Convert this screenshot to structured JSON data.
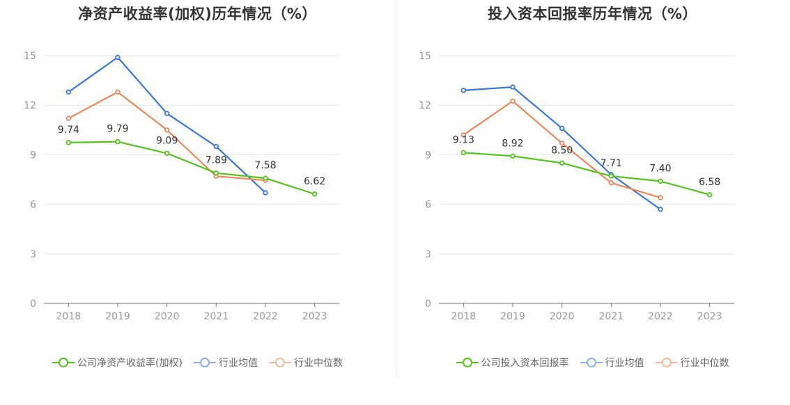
{
  "chart_data": [
    {
      "type": "line",
      "title": "净资产收益率(加权)历年情况（%）",
      "categories": [
        "2018",
        "2019",
        "2020",
        "2021",
        "2022",
        "2023"
      ],
      "ylim": [
        0,
        15
      ],
      "yticks": [
        "0",
        "3",
        "6",
        "9",
        "12",
        "15"
      ],
      "grid": true,
      "legend_position": "bottom",
      "series": [
        {
          "name": "公司净资产收益率(加权)",
          "color": "#52c41a",
          "values": [
            9.74,
            9.79,
            9.09,
            7.89,
            7.58,
            6.62
          ],
          "labels": [
            "9.74",
            "9.79",
            "9.09",
            "7.89",
            "7.58",
            "6.62"
          ]
        },
        {
          "name": "行业均值",
          "color": "#3a75e0",
          "values": [
            12.8,
            14.9,
            11.5,
            9.5,
            6.7,
            null
          ]
        },
        {
          "name": "行业中位数",
          "color": "#f0875a",
          "values": [
            11.2,
            12.8,
            10.5,
            7.7,
            7.45,
            null
          ]
        }
      ]
    },
    {
      "type": "line",
      "title": "投入资本回报率历年情况（%）",
      "categories": [
        "2018",
        "2019",
        "2020",
        "2021",
        "2022",
        "2023"
      ],
      "ylim": [
        0,
        15
      ],
      "yticks": [
        "0",
        "3",
        "6",
        "9",
        "12",
        "15"
      ],
      "grid": true,
      "legend_position": "bottom",
      "series": [
        {
          "name": "公司投入资本回报率",
          "color": "#52c41a",
          "values": [
            9.13,
            8.92,
            8.5,
            7.71,
            7.4,
            6.58
          ],
          "labels": [
            "9.13",
            "8.92",
            "8.50",
            "7.71",
            "7.40",
            "6.58"
          ]
        },
        {
          "name": "行业均值",
          "color": "#3a75e0",
          "values": [
            12.9,
            13.1,
            10.6,
            7.8,
            5.7,
            null
          ]
        },
        {
          "name": "行业中位数",
          "color": "#f0875a",
          "values": [
            10.2,
            12.25,
            9.7,
            7.3,
            6.4,
            null
          ]
        }
      ]
    }
  ],
  "legend_colors": {
    "company": "#52c41a",
    "mean": "#8ab0ee",
    "median": "#f7b79a"
  }
}
